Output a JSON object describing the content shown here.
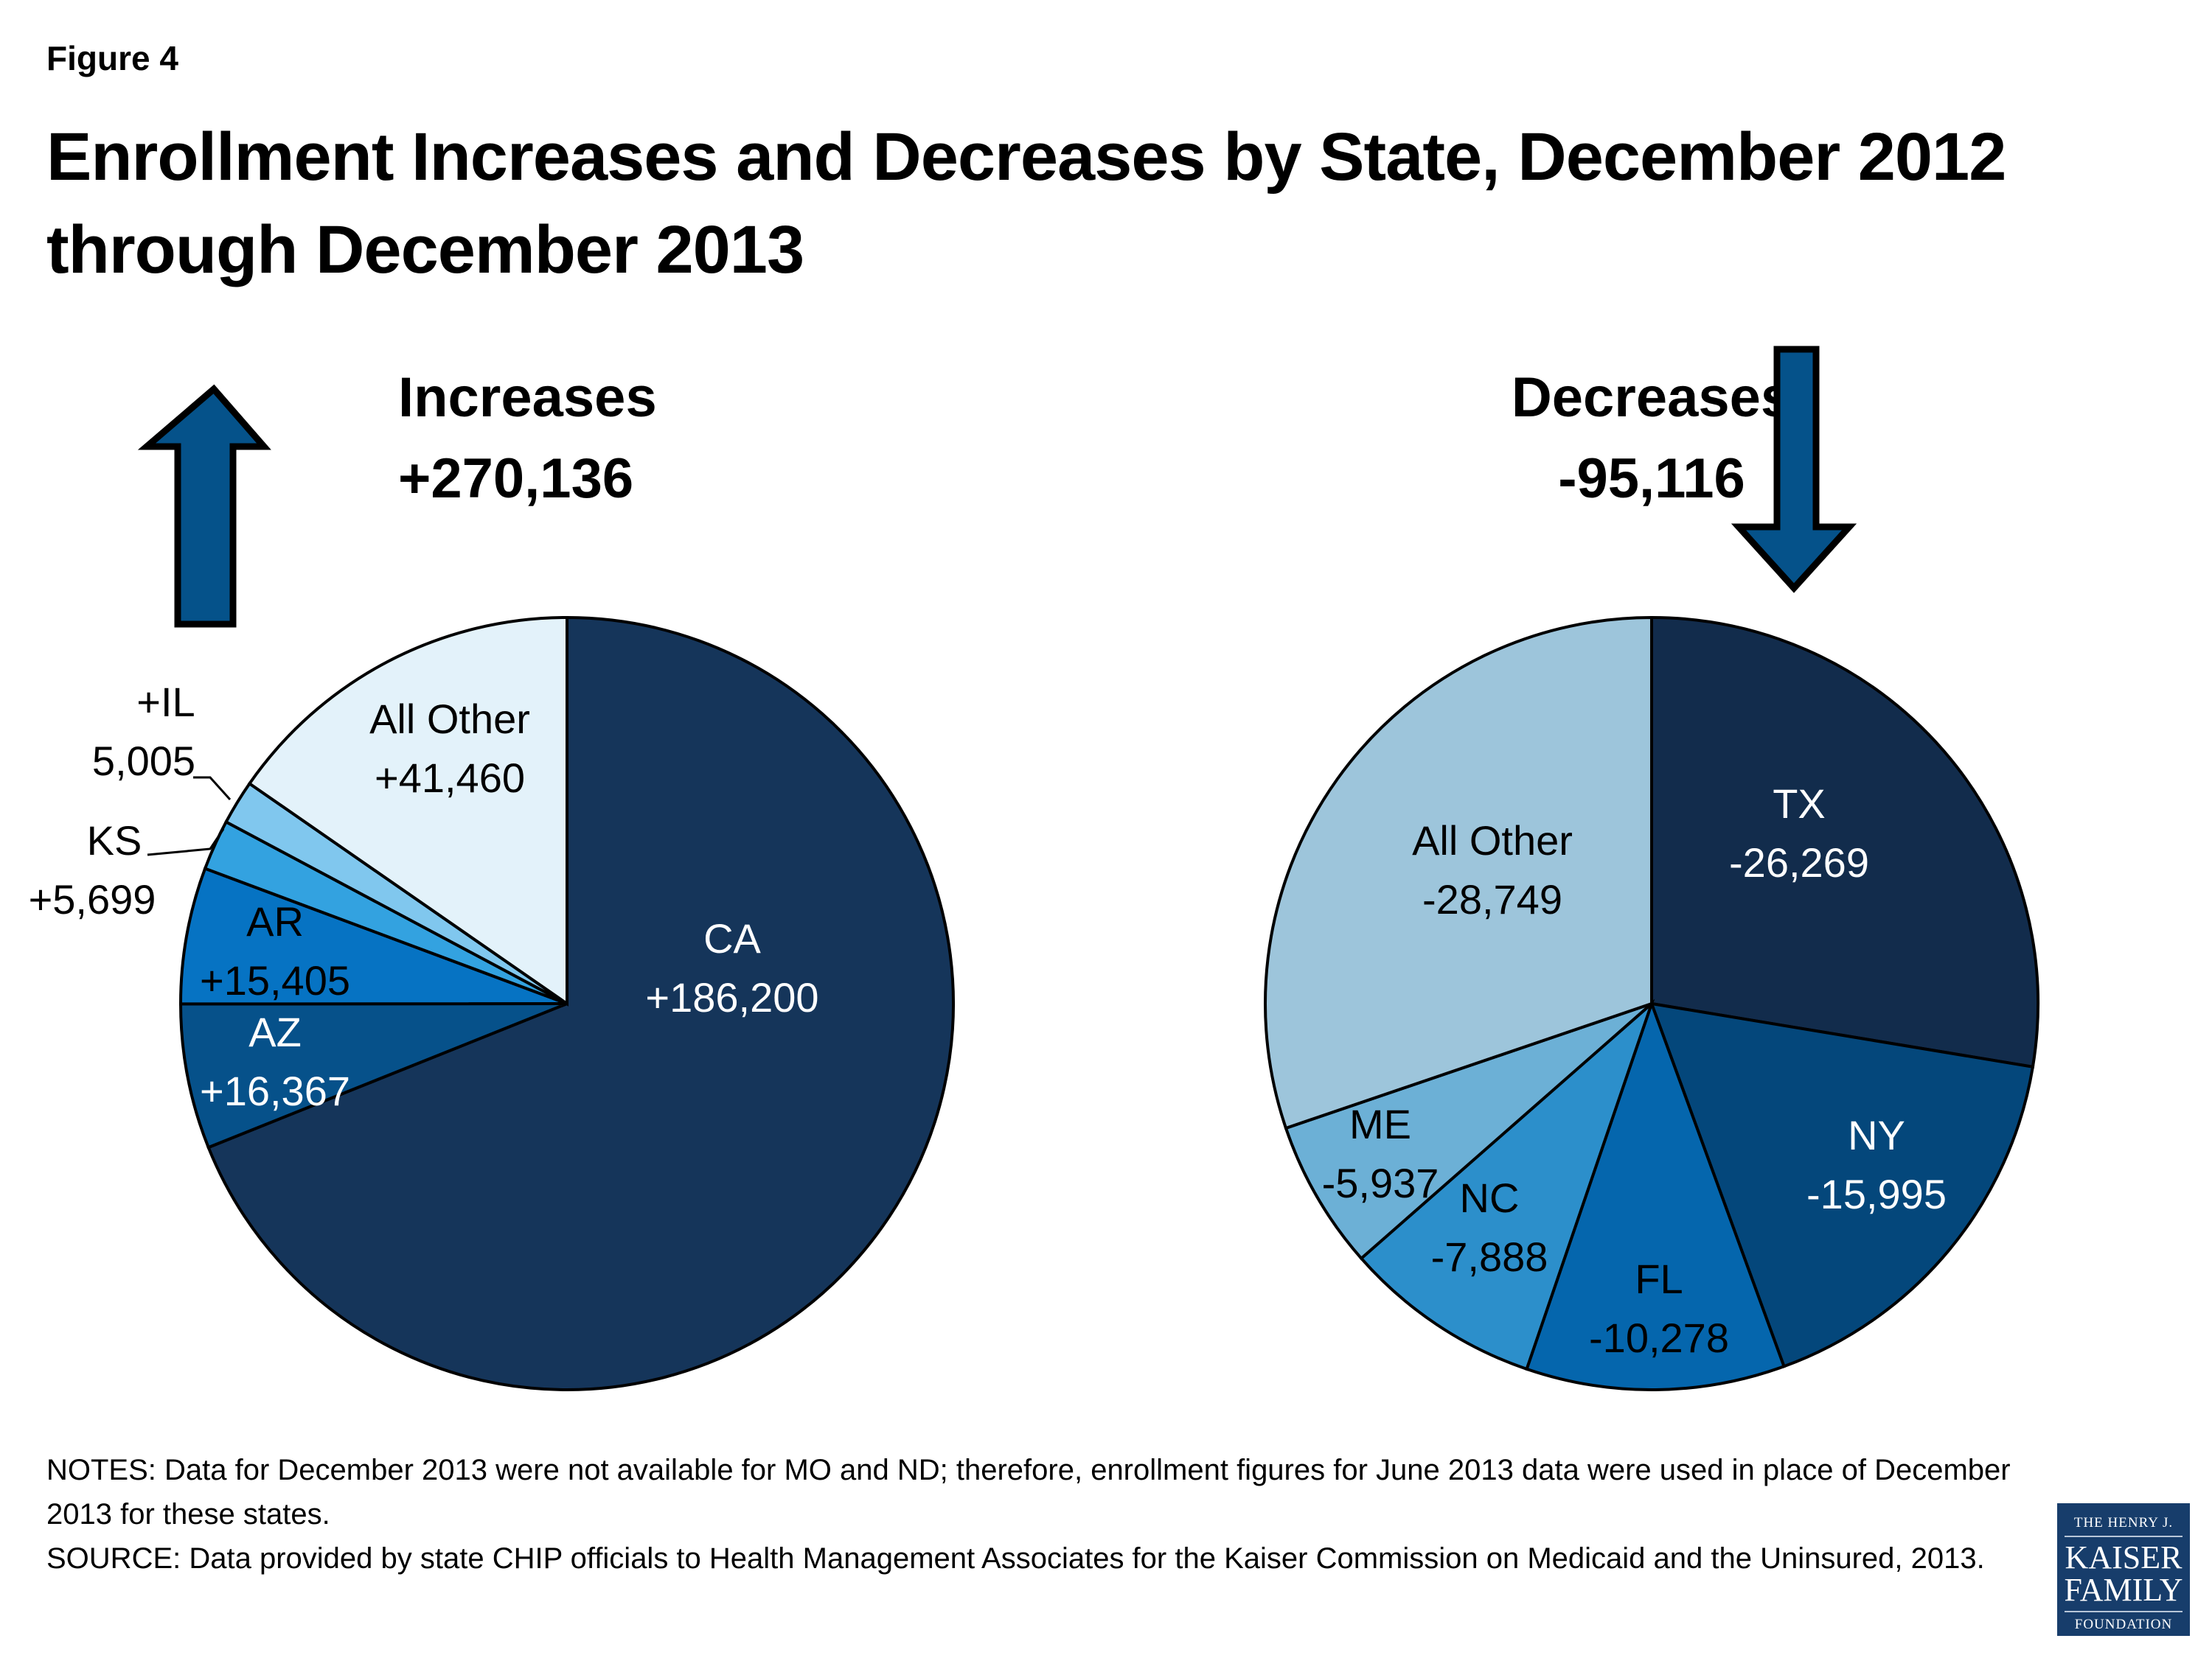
{
  "figure_label": "Figure 4",
  "title": "Enrollment Increases and Decreases by State, December 2012 through December 2013",
  "increases_header": {
    "label": "Increases",
    "total": "+270,136"
  },
  "decreases_header": {
    "label": "Decreases",
    "total": "-95,116"
  },
  "icons": {
    "up_arrow": "arrow-up-icon",
    "down_arrow": "arrow-down-icon"
  },
  "colors": {
    "arrow": "#05528a",
    "outline": "#000000"
  },
  "chart_data": [
    {
      "type": "pie",
      "title": "Increases",
      "total": 270136,
      "start": "12 o'clock, clockwise",
      "slices": [
        {
          "label": "CA",
          "value": 186200,
          "display": "+186,200",
          "color": "#15355a",
          "text_color": "#ffffff"
        },
        {
          "label": "AZ",
          "value": 16367,
          "display": "+16,367",
          "color": "#06518a",
          "text_color": "#ffffff"
        },
        {
          "label": "AR",
          "value": 15405,
          "display": "+15,405",
          "color": "#0673c3",
          "text_color": "#000000"
        },
        {
          "label": "KS",
          "value": 5699,
          "display": "+5,699",
          "color": "#33a2e0",
          "text_color": "#000000",
          "outside": true
        },
        {
          "label": "+IL",
          "value": 5005,
          "display": "5,005",
          "color": "#80c7ee",
          "text_color": "#000000",
          "outside": true
        },
        {
          "label": "All Other",
          "value": 41460,
          "display": "+41,460",
          "color": "#e3f2fa",
          "text_color": "#000000"
        }
      ]
    },
    {
      "type": "pie",
      "title": "Decreases",
      "total": -95116,
      "start": "12 o'clock, clockwise",
      "slices": [
        {
          "label": "TX",
          "value": -26269,
          "display": "-26,269",
          "color": "#122c4c",
          "text_color": "#ffffff"
        },
        {
          "label": "NY",
          "value": -15995,
          "display": "-15,995",
          "color": "#04477b",
          "text_color": "#ffffff"
        },
        {
          "label": "FL",
          "value": -10278,
          "display": "-10,278",
          "color": "#0566ad",
          "text_color": "#000000"
        },
        {
          "label": "NC",
          "value": -7888,
          "display": "-7,888",
          "color": "#2c8fcb",
          "text_color": "#000000"
        },
        {
          "label": "ME",
          "value": -5937,
          "display": "-5,937",
          "color": "#6cb0d6",
          "text_color": "#000000"
        },
        {
          "label": "All Other",
          "value": -28749,
          "display": "-28,749",
          "color": "#9dc5db",
          "text_color": "#000000"
        }
      ]
    }
  ],
  "notes": "NOTES: Data for December 2013 were not available for MO and ND; therefore, enrollment figures for June 2013 data were used in place of December 2013 for these states.",
  "source": "SOURCE: Data provided by state CHIP officials to Health Management Associates for the Kaiser Commission on Medicaid and the Uninsured, 2013.",
  "logo": {
    "line1": "THE HENRY J.",
    "line2": "KAISER",
    "line3": "FAMILY",
    "line4": "FOUNDATION"
  }
}
